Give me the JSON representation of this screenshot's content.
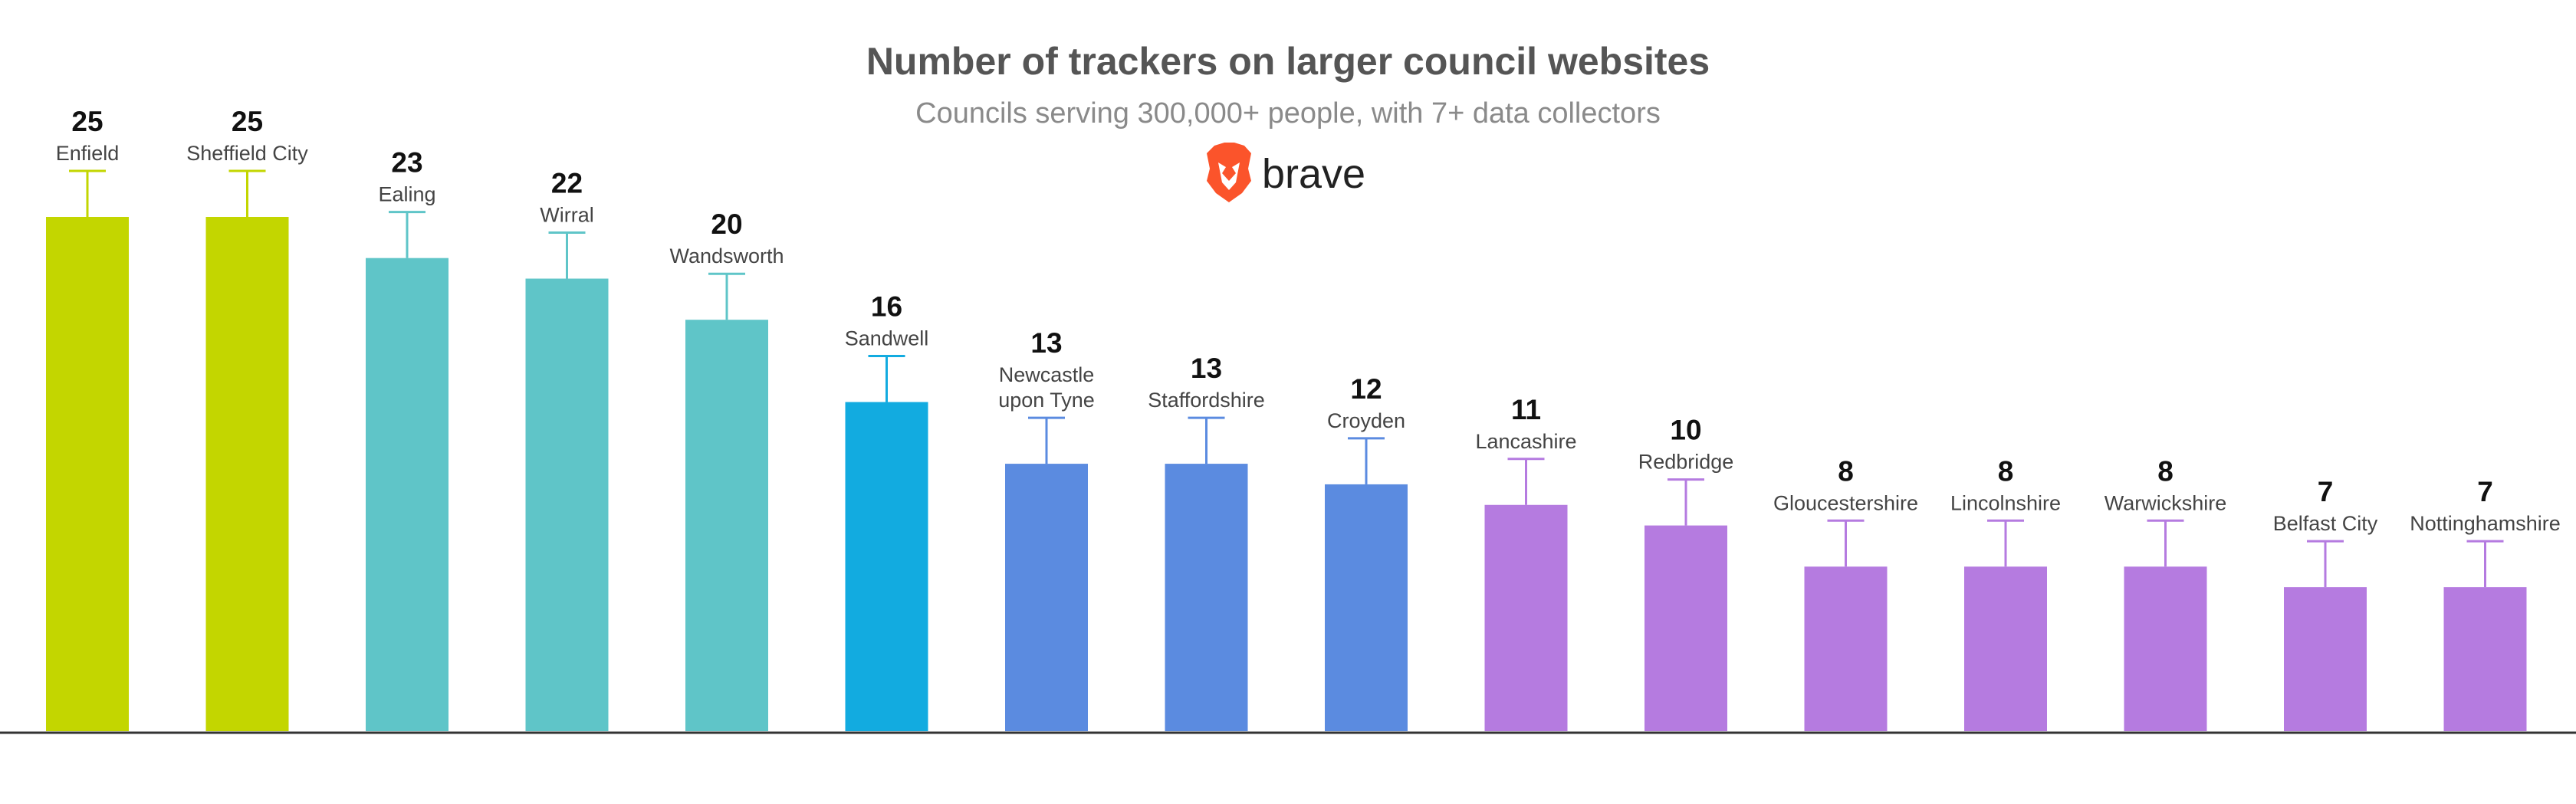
{
  "chart_data": {
    "type": "bar",
    "title": "Number of trackers on larger council websites",
    "subtitle": "Councils serving 300,000+ people, with 7+ data collectors",
    "brand": "brave",
    "xlabel": "",
    "ylabel": "",
    "ylim": [
      0,
      25
    ],
    "grid": false,
    "legend": "none",
    "categories": [
      [
        "Enfield"
      ],
      [
        "Sheffield City"
      ],
      [
        "Ealing"
      ],
      [
        "Wirral"
      ],
      [
        "Wandsworth"
      ],
      [
        "Sandwell"
      ],
      [
        "Newcastle",
        "upon Tyne"
      ],
      [
        "Staffordshire"
      ],
      [
        "Croyden"
      ],
      [
        "Lancashire"
      ],
      [
        "Redbridge"
      ],
      [
        "Gloucestershire"
      ],
      [
        "Lincolnshire"
      ],
      [
        "Warwickshire"
      ],
      [
        "Belfast City"
      ],
      [
        "Nottinghamshire"
      ]
    ],
    "values": [
      25,
      25,
      23,
      22,
      20,
      16,
      13,
      13,
      12,
      11,
      10,
      8,
      8,
      8,
      7,
      7
    ],
    "bar_colors": [
      "#c3d600",
      "#c3d600",
      "#5fc5c8",
      "#5fc5c8",
      "#5fc5c8",
      "#12abe0",
      "#5b8be0",
      "#5b8be0",
      "#5b8be0",
      "#b57be0",
      "#b57be0",
      "#b57be0",
      "#b57be0",
      "#b57be0",
      "#b57be0",
      "#b57be0"
    ]
  },
  "colors": {
    "brand_orange": "#fb542b",
    "axis": "#333333"
  }
}
